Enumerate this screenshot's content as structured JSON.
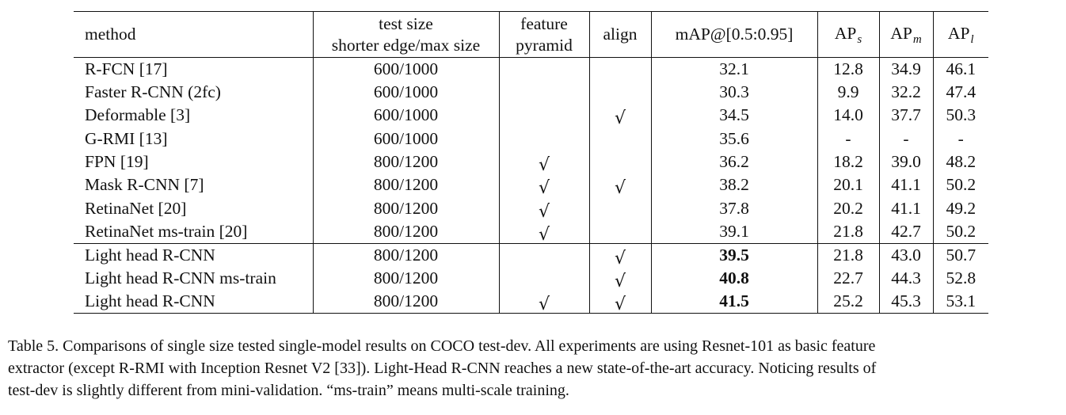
{
  "table": {
    "headers": {
      "method": "method",
      "test_size_line1": "test size",
      "test_size_line2": "shorter edge/max size",
      "feature_line1": "feature",
      "feature_line2": "pyramid",
      "align": "align",
      "map": "mAP@[0.5:0.95]",
      "ap_s_base": "AP",
      "ap_s_sub": "s",
      "ap_m_base": "AP",
      "ap_m_sub": "m",
      "ap_l_base": "AP",
      "ap_l_sub": "l"
    },
    "check_glyph": "√",
    "rows": [
      {
        "method": "R-FCN [17]",
        "test_size": "600/1000",
        "feature_pyramid": "",
        "align": "",
        "map": "32.1",
        "ap_s": "12.8",
        "ap_m": "34.9",
        "ap_l": "46.1",
        "map_bold": false
      },
      {
        "method": "Faster R-CNN (2fc)",
        "test_size": "600/1000",
        "feature_pyramid": "",
        "align": "",
        "map": "30.3",
        "ap_s": "9.9",
        "ap_m": "32.2",
        "ap_l": "47.4",
        "map_bold": false
      },
      {
        "method": "Deformable [3]",
        "test_size": "600/1000",
        "feature_pyramid": "",
        "align": "√",
        "map": "34.5",
        "ap_s": "14.0",
        "ap_m": "37.7",
        "ap_l": "50.3",
        "map_bold": false
      },
      {
        "method": "G-RMI [13]",
        "test_size": "600/1000",
        "feature_pyramid": "",
        "align": "",
        "map": "35.6",
        "ap_s": "-",
        "ap_m": "-",
        "ap_l": "-",
        "map_bold": false
      },
      {
        "method": "FPN [19]",
        "test_size": "800/1200",
        "feature_pyramid": "√",
        "align": "",
        "map": "36.2",
        "ap_s": "18.2",
        "ap_m": "39.0",
        "ap_l": "48.2",
        "map_bold": false
      },
      {
        "method": "Mask R-CNN [7]",
        "test_size": "800/1200",
        "feature_pyramid": "√",
        "align": "√",
        "map": "38.2",
        "ap_s": "20.1",
        "ap_m": "41.1",
        "ap_l": "50.2",
        "map_bold": false
      },
      {
        "method": "RetinaNet [20]",
        "test_size": "800/1200",
        "feature_pyramid": "√",
        "align": "",
        "map": "37.8",
        "ap_s": "20.2",
        "ap_m": "41.1",
        "ap_l": "49.2",
        "map_bold": false
      },
      {
        "method": "RetinaNet ms-train [20]",
        "test_size": "800/1200",
        "feature_pyramid": "√",
        "align": "",
        "map": "39.1",
        "ap_s": "21.8",
        "ap_m": "42.7",
        "ap_l": "50.2",
        "map_bold": false
      },
      {
        "method": "Light head R-CNN",
        "test_size": "800/1200",
        "feature_pyramid": "",
        "align": "√",
        "map": "39.5",
        "ap_s": "21.8",
        "ap_m": "43.0",
        "ap_l": "50.7",
        "map_bold": true
      },
      {
        "method": "Light head R-CNN ms-train",
        "test_size": "800/1200",
        "feature_pyramid": "",
        "align": "√",
        "map": "40.8",
        "ap_s": "22.7",
        "ap_m": "44.3",
        "ap_l": "52.8",
        "map_bold": true
      },
      {
        "method": "Light head R-CNN",
        "test_size": "800/1200",
        "feature_pyramid": "√",
        "align": "√",
        "map": "41.5",
        "ap_s": "25.2",
        "ap_m": "45.3",
        "ap_l": "53.1",
        "map_bold": true
      }
    ]
  },
  "caption": {
    "line1": "Table 5. Comparisons of single size tested single-model results on COCO test-dev. All experiments are using Resnet-101 as basic feature",
    "line2": "extractor (except R-RMI with Inception Resnet V2 [33]). Light-Head R-CNN reaches a new state-of-the-art accuracy. Noticing results of",
    "line3": "test-dev is slightly different from mini-validation. “ms-train” means multi-scale training."
  }
}
